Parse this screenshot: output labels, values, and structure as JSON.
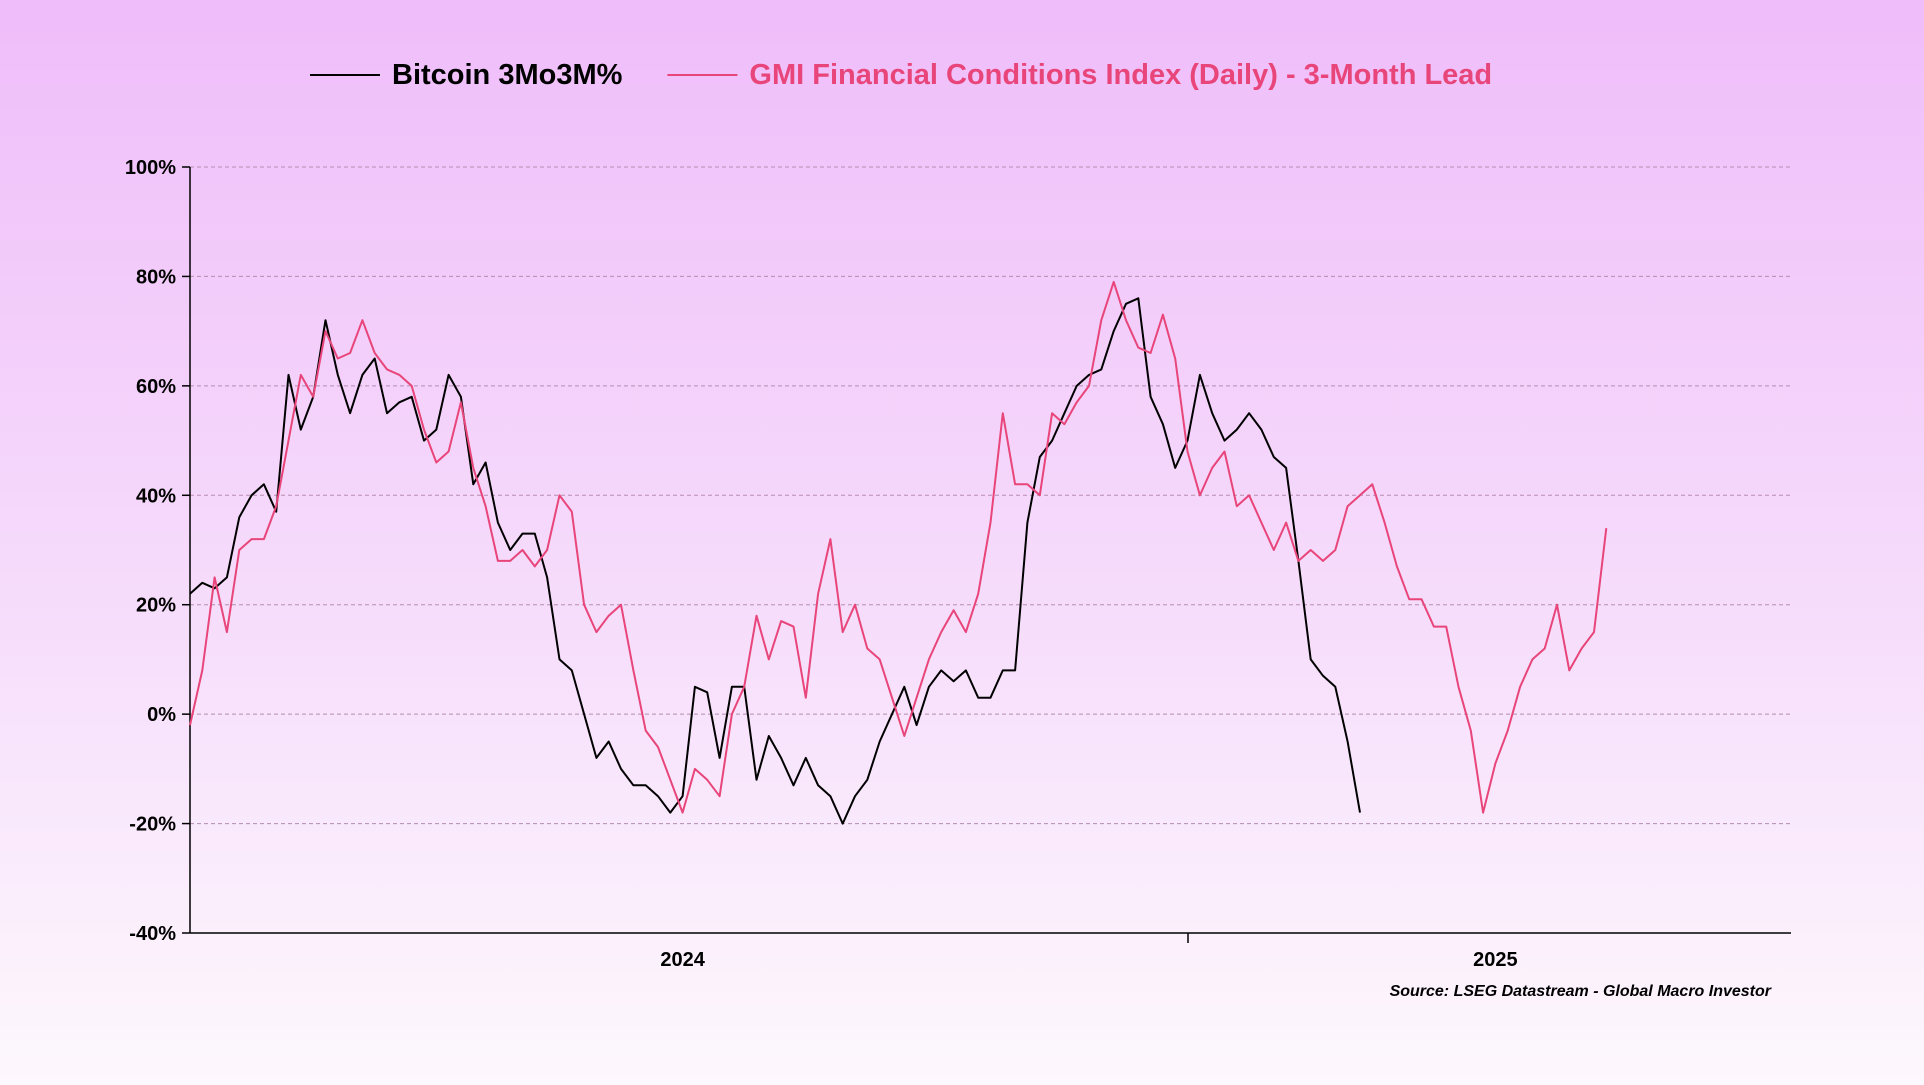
{
  "chart_data": {
    "type": "line",
    "source": "Source: LSEG Datastream - Global Macro Investor",
    "categories": [
      null,
      null,
      null,
      null,
      null,
      null,
      null,
      null,
      null,
      null,
      null,
      null,
      null,
      null,
      null,
      null,
      null,
      null,
      null,
      null,
      null,
      null,
      null,
      null,
      null,
      null,
      null,
      null,
      null,
      null,
      null,
      null,
      null,
      null,
      null,
      null,
      null,
      null,
      null,
      null,
      "2024",
      null,
      null,
      null,
      null,
      null,
      null,
      null,
      null,
      null,
      null,
      null,
      null,
      null,
      null,
      null,
      null,
      null,
      null,
      null,
      null,
      null,
      null,
      null,
      null,
      null,
      null,
      null,
      null,
      null,
      null,
      null,
      null,
      null,
      null,
      null,
      null,
      null,
      null,
      null,
      null,
      null,
      null,
      null,
      null,
      null,
      null,
      null,
      null,
      null,
      null,
      null,
      null,
      null,
      null,
      null,
      null,
      null,
      null,
      null,
      null,
      null,
      null,
      null,
      null,
      null,
      "2025",
      null,
      null,
      null,
      null,
      null,
      null,
      null,
      null,
      null,
      null,
      null,
      null,
      null,
      null,
      null,
      null,
      null,
      null,
      null,
      null,
      null,
      null,
      null,
      null
    ],
    "series": [
      {
        "name": "Bitcoin 3Mo3M%",
        "color": "#000000",
        "values": [
          22,
          24,
          23,
          25,
          36,
          40,
          42,
          37,
          62,
          52,
          58,
          72,
          62,
          55,
          62,
          65,
          55,
          57,
          58,
          50,
          52,
          62,
          58,
          42,
          46,
          35,
          30,
          33,
          33,
          25,
          10,
          8,
          0,
          -8,
          -5,
          -10,
          -13,
          -13,
          -15,
          -18,
          -15,
          5,
          4,
          -8,
          5,
          5,
          -12,
          -4,
          -8,
          -13,
          -8,
          -13,
          -15,
          -20,
          -15,
          -12,
          -5,
          0,
          5,
          -2,
          5,
          8,
          6,
          8,
          3,
          3,
          8,
          8,
          35,
          47,
          50,
          55,
          60,
          62,
          63,
          70,
          75,
          76,
          58,
          53,
          45,
          50,
          62,
          55,
          50,
          52,
          55,
          52,
          47,
          45,
          28,
          10,
          7,
          5,
          -5,
          -18,
          null,
          null,
          null,
          null,
          null,
          null,
          null,
          null,
          null,
          null,
          null,
          null,
          null,
          null,
          null,
          null,
          null,
          null,
          null,
          null,
          null,
          null,
          null,
          null,
          null,
          null,
          null,
          null,
          null,
          null,
          null,
          null,
          null,
          null,
          null
        ]
      },
      {
        "name": "GMI Financial Conditions Index (Daily) - 3-Month Lead",
        "color": "#e8457a",
        "values": [
          -2,
          8,
          25,
          15,
          30,
          32,
          32,
          38,
          50,
          62,
          58,
          70,
          65,
          66,
          72,
          66,
          63,
          62,
          60,
          52,
          46,
          48,
          57,
          45,
          38,
          28,
          28,
          30,
          27,
          30,
          40,
          37,
          20,
          15,
          18,
          20,
          8,
          -3,
          -6,
          -12,
          -18,
          -10,
          -12,
          -15,
          0,
          5,
          18,
          10,
          17,
          16,
          3,
          22,
          32,
          15,
          20,
          12,
          10,
          3,
          -4,
          3,
          10,
          15,
          19,
          15,
          22,
          35,
          55,
          42,
          42,
          40,
          55,
          53,
          57,
          60,
          72,
          79,
          72,
          67,
          66,
          73,
          65,
          48,
          40,
          45,
          48,
          38,
          40,
          35,
          30,
          35,
          28,
          30,
          28,
          30,
          38,
          40,
          42,
          35,
          27,
          21,
          21,
          16,
          16,
          5,
          -3,
          -18,
          -9,
          -3,
          5,
          10,
          12,
          20,
          8,
          12,
          15,
          34,
          null,
          null,
          null,
          null,
          null,
          null,
          null,
          null,
          null,
          null,
          null,
          null,
          null,
          null,
          null
        ]
      }
    ],
    "ylim": [
      -40,
      100
    ],
    "yticks": [
      {
        "value": -40,
        "label": "-40%"
      },
      {
        "value": -20,
        "label": "-20%"
      },
      {
        "value": 0,
        "label": "0%"
      },
      {
        "value": 20,
        "label": "20%"
      },
      {
        "value": 40,
        "label": "40%"
      },
      {
        "value": 60,
        "label": "60%"
      },
      {
        "value": 80,
        "label": "80%"
      },
      {
        "value": 100,
        "label": "100%"
      }
    ],
    "grid": true,
    "legend": "top"
  }
}
